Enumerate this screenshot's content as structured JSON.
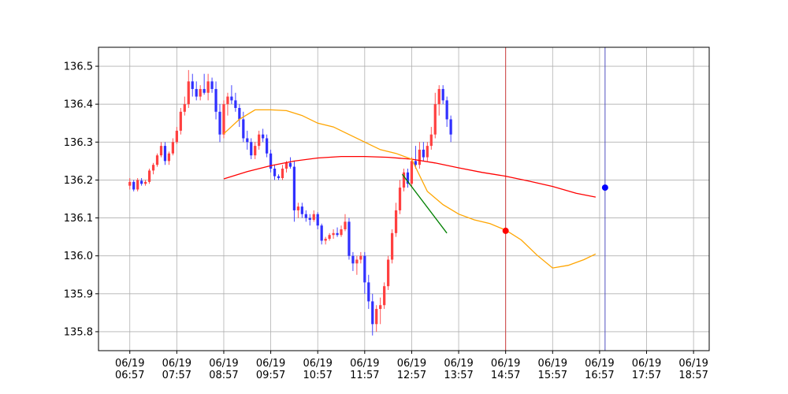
{
  "chart_data": {
    "type": "candlestick",
    "title": "",
    "xlabel": "",
    "ylabel": "",
    "grid": true,
    "ylim": [
      135.75,
      136.55
    ],
    "xlim": [
      -40,
      740
    ],
    "y_ticks": [
      135.8,
      135.9,
      136.0,
      136.1,
      136.2,
      136.3,
      136.4,
      136.5
    ],
    "x_ticks": [
      {
        "x": 0,
        "date": "06/19",
        "time": "06:57"
      },
      {
        "x": 60,
        "date": "06/19",
        "time": "07:57"
      },
      {
        "x": 120,
        "date": "06/19",
        "time": "08:57"
      },
      {
        "x": 180,
        "date": "06/19",
        "time": "09:57"
      },
      {
        "x": 240,
        "date": "06/19",
        "time": "10:57"
      },
      {
        "x": 300,
        "date": "06/19",
        "time": "11:57"
      },
      {
        "x": 360,
        "date": "06/19",
        "time": "12:57"
      },
      {
        "x": 420,
        "date": "06/19",
        "time": "13:57"
      },
      {
        "x": 480,
        "date": "06/19",
        "time": "14:57"
      },
      {
        "x": 540,
        "date": "06/19",
        "time": "15:57"
      },
      {
        "x": 600,
        "date": "06/19",
        "time": "16:57"
      },
      {
        "x": 660,
        "date": "06/19",
        "time": "17:57"
      },
      {
        "x": 720,
        "date": "06/19",
        "time": "18:57"
      }
    ],
    "candle_minutes": 5,
    "candles": [
      [
        136.185,
        136.205,
        136.175,
        136.195
      ],
      [
        136.195,
        136.2,
        136.17,
        136.175
      ],
      [
        136.175,
        136.205,
        136.17,
        136.2
      ],
      [
        136.198,
        136.205,
        136.185,
        136.19
      ],
      [
        136.19,
        136.2,
        136.185,
        136.195
      ],
      [
        136.195,
        136.23,
        136.19,
        136.225
      ],
      [
        136.225,
        136.245,
        136.215,
        136.24
      ],
      [
        136.24,
        136.27,
        136.235,
        136.265
      ],
      [
        136.265,
        136.3,
        136.26,
        136.29
      ],
      [
        136.29,
        136.3,
        136.24,
        136.25
      ],
      [
        136.25,
        136.275,
        136.24,
        136.27
      ],
      [
        136.27,
        136.31,
        136.265,
        136.3
      ],
      [
        136.3,
        136.34,
        136.295,
        136.33
      ],
      [
        136.33,
        136.39,
        136.32,
        136.38
      ],
      [
        136.38,
        136.42,
        136.37,
        136.4
      ],
      [
        136.4,
        136.49,
        136.39,
        136.46
      ],
      [
        136.46,
        136.48,
        136.42,
        136.44
      ],
      [
        136.44,
        136.46,
        136.41,
        136.42
      ],
      [
        136.42,
        136.45,
        136.41,
        136.44
      ],
      [
        136.44,
        136.48,
        136.425,
        136.43
      ],
      [
        136.43,
        136.48,
        136.41,
        136.46
      ],
      [
        136.46,
        136.47,
        136.43,
        136.44
      ],
      [
        136.44,
        136.46,
        136.36,
        136.38
      ],
      [
        136.38,
        136.4,
        136.3,
        136.32
      ],
      [
        136.32,
        136.41,
        136.31,
        136.4
      ],
      [
        136.4,
        136.43,
        136.37,
        136.42
      ],
      [
        136.42,
        136.45,
        136.4,
        136.41
      ],
      [
        136.41,
        136.43,
        136.38,
        136.39
      ],
      [
        136.39,
        136.4,
        136.34,
        136.36
      ],
      [
        136.36,
        136.38,
        136.3,
        136.31
      ],
      [
        136.31,
        136.33,
        136.28,
        136.3
      ],
      [
        136.3,
        136.31,
        136.255,
        136.265
      ],
      [
        136.265,
        136.3,
        136.255,
        136.29
      ],
      [
        136.29,
        136.33,
        136.28,
        136.32
      ],
      [
        136.32,
        136.335,
        136.3,
        136.31
      ],
      [
        136.31,
        136.32,
        136.26,
        136.27
      ],
      [
        136.27,
        136.28,
        136.22,
        136.23
      ],
      [
        136.23,
        136.24,
        136.2,
        136.21
      ],
      [
        136.21,
        136.215,
        136.2,
        136.205
      ],
      [
        136.205,
        136.24,
        136.2,
        136.23
      ],
      [
        136.23,
        136.25,
        136.22,
        136.245
      ],
      [
        136.245,
        136.26,
        136.23,
        136.235
      ],
      [
        136.235,
        136.25,
        136.09,
        136.12
      ],
      [
        136.12,
        136.14,
        136.1,
        136.13
      ],
      [
        136.13,
        136.14,
        136.1,
        136.11
      ],
      [
        136.11,
        136.12,
        136.09,
        136.1
      ],
      [
        136.1,
        136.11,
        136.08,
        136.095
      ],
      [
        136.095,
        136.12,
        136.09,
        136.11
      ],
      [
        136.11,
        136.115,
        136.07,
        136.08
      ],
      [
        136.08,
        136.085,
        136.03,
        136.04
      ],
      [
        136.04,
        136.05,
        136.03,
        136.045
      ],
      [
        136.045,
        136.06,
        136.04,
        136.055
      ],
      [
        136.055,
        136.07,
        136.045,
        136.06
      ],
      [
        136.06,
        136.075,
        136.05,
        136.055
      ],
      [
        136.055,
        136.08,
        136.05,
        136.07
      ],
      [
        136.07,
        136.11,
        136.065,
        136.09
      ],
      [
        136.09,
        136.1,
        135.99,
        136.0
      ],
      [
        136.0,
        136.01,
        135.96,
        135.98
      ],
      [
        135.98,
        136.0,
        135.95,
        135.99
      ],
      [
        135.99,
        136.01,
        135.98,
        136.0
      ],
      [
        136.0,
        136.01,
        135.9,
        135.93
      ],
      [
        135.93,
        135.95,
        135.86,
        135.88
      ],
      [
        135.88,
        135.9,
        135.79,
        135.82
      ],
      [
        135.82,
        135.87,
        135.8,
        135.86
      ],
      [
        135.86,
        135.89,
        135.82,
        135.87
      ],
      [
        135.87,
        135.93,
        135.86,
        135.92
      ],
      [
        135.92,
        136.0,
        135.91,
        135.99
      ],
      [
        135.99,
        136.07,
        135.98,
        136.06
      ],
      [
        136.06,
        136.14,
        136.05,
        136.12
      ],
      [
        136.12,
        136.2,
        136.11,
        136.18
      ],
      [
        136.18,
        136.23,
        136.17,
        136.22
      ],
      [
        136.22,
        136.23,
        136.18,
        136.19
      ],
      [
        136.19,
        136.26,
        136.18,
        136.25
      ],
      [
        136.25,
        136.29,
        136.23,
        136.24
      ],
      [
        136.24,
        136.3,
        136.23,
        136.28
      ],
      [
        136.28,
        136.3,
        136.25,
        136.26
      ],
      [
        136.26,
        136.3,
        136.25,
        136.29
      ],
      [
        136.29,
        136.34,
        136.28,
        136.32
      ],
      [
        136.32,
        136.43,
        136.31,
        136.4
      ],
      [
        136.4,
        136.45,
        136.37,
        136.44
      ],
      [
        136.44,
        136.45,
        136.4,
        136.41
      ],
      [
        136.41,
        136.42,
        136.34,
        136.36
      ],
      [
        136.36,
        136.37,
        136.3,
        136.32
      ]
    ],
    "series": [
      {
        "name": "",
        "color": "#ff0000",
        "x": [
          120,
          150,
          180,
          210,
          240,
          270,
          300,
          330,
          360,
          390,
          420,
          450,
          480,
          510,
          540,
          570,
          595
        ],
        "y": [
          136.203,
          136.222,
          136.238,
          136.25,
          136.258,
          136.262,
          136.262,
          136.26,
          136.255,
          136.245,
          136.232,
          136.22,
          136.21,
          136.197,
          136.183,
          136.165,
          136.155
        ]
      },
      {
        "name": "",
        "color": "#ffa500",
        "x": [
          120,
          140,
          160,
          180,
          200,
          220,
          240,
          260,
          280,
          300,
          320,
          340,
          360,
          380,
          400,
          420,
          440,
          460,
          480,
          500,
          520,
          540,
          560,
          580,
          595
        ],
        "y": [
          136.322,
          136.36,
          136.385,
          136.385,
          136.383,
          136.37,
          136.35,
          136.34,
          136.32,
          136.3,
          136.28,
          136.27,
          136.255,
          136.17,
          136.135,
          136.11,
          136.095,
          136.085,
          136.068,
          136.042,
          136.002,
          135.968,
          135.975,
          135.99,
          136.005
        ]
      },
      {
        "name": "",
        "color": "#008000",
        "x": [
          348,
          405
        ],
        "y": [
          136.215,
          136.06
        ]
      }
    ],
    "vlines": [
      {
        "x": 480,
        "color": "#d04040"
      },
      {
        "x": 607,
        "color": "#5050c0"
      }
    ],
    "markers": [
      {
        "x": 480,
        "y": 136.066,
        "color": "#ff0000"
      },
      {
        "x": 607,
        "y": 136.18,
        "color": "#0000ff"
      }
    ],
    "up_color": "#ff4040",
    "down_color": "#3030ff"
  }
}
